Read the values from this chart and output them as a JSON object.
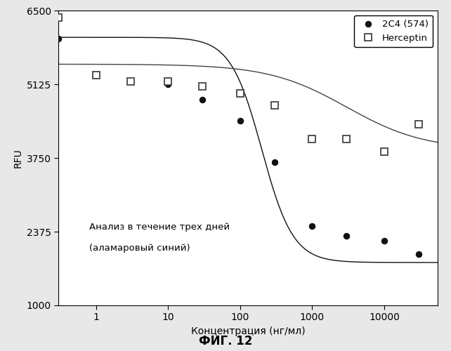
{
  "xlabel": "Концентрация (нг/мл)",
  "ylabel": "RFU",
  "fig_label": "ФИГ. 12",
  "annotation_line1": "Анализ в течение трех дней",
  "annotation_line2": "(аламаровый синий)",
  "ylim": [
    1000,
    6500
  ],
  "yticks": [
    1000,
    2375,
    3750,
    5125,
    6500
  ],
  "background_color": "#e8e8e8",
  "plot_bg_color": "#ffffff",
  "series_2c4_x": [
    0.3,
    1.0,
    3.0,
    10.0,
    30.0,
    100.0,
    300.0,
    1000.0,
    3000.0,
    10000.0,
    30000.0
  ],
  "series_2c4_y": [
    5980,
    5300,
    5180,
    5120,
    4840,
    4450,
    3670,
    2480,
    2300,
    2200,
    1950
  ],
  "series_herceptin_x": [
    0.3,
    1.0,
    3.0,
    10.0,
    30.0,
    100.0,
    300.0,
    1000.0,
    3000.0,
    10000.0,
    30000.0
  ],
  "series_herceptin_y": [
    6370,
    5300,
    5180,
    5180,
    5090,
    4960,
    4730,
    4110,
    4100,
    3870,
    4380
  ],
  "color_2c4": "#111111",
  "color_herceptin": "#444444",
  "legend_2c4": "2C4 (574)",
  "legend_herceptin": "Herceptin",
  "marker_size_2c4": 6,
  "marker_size_herceptin": 7
}
